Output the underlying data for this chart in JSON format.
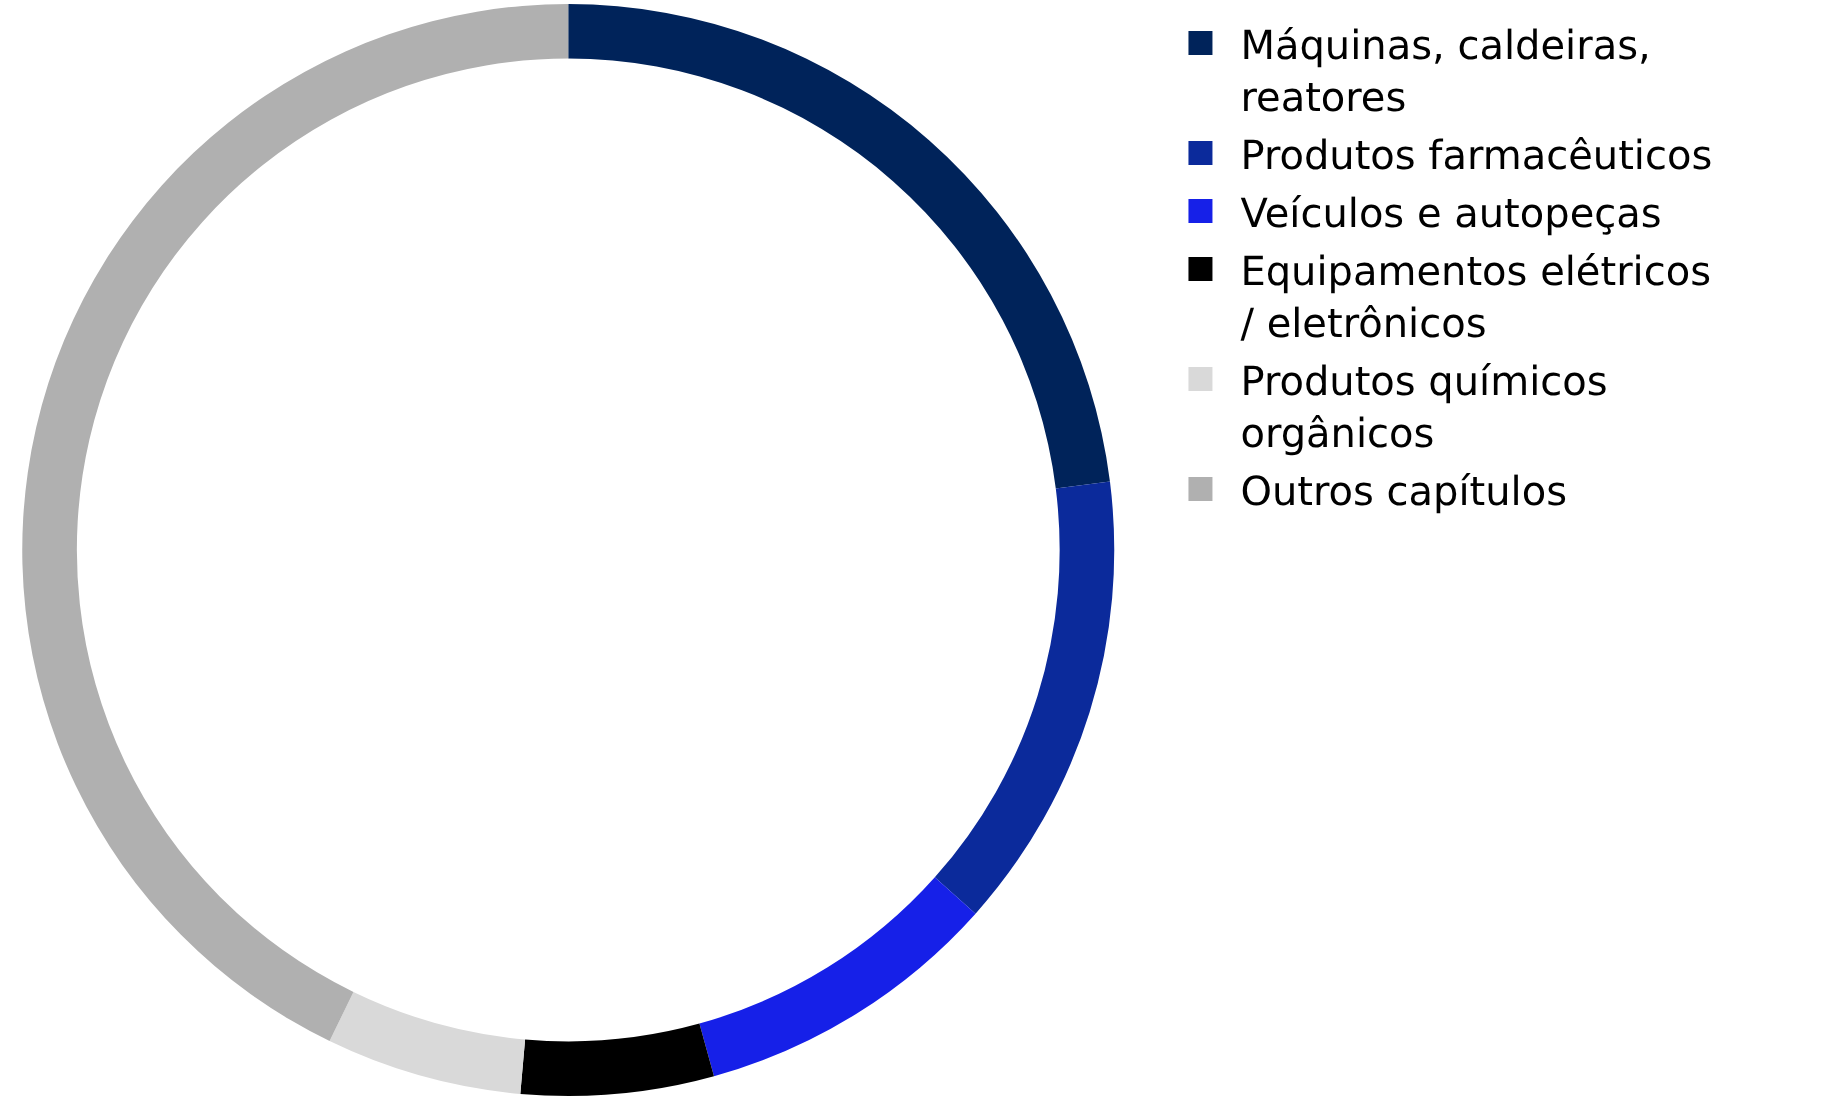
{
  "chart_data": {
    "type": "donut",
    "categories": [
      "Máquinas, caldeiras, reatores",
      "Produtos farmacêuticos",
      "Veículos e autopeças",
      "Equipamentos elétricos / eletrônicos",
      "Produtos químicos orgânicos",
      "Outros capítulos"
    ],
    "values": [
      23,
      13.6,
      9.1,
      5.7,
      5.8,
      42.8
    ],
    "colors": [
      "#00235a",
      "#0b2a9b",
      "#1620e8",
      "#000000",
      "#d9d9d9",
      "#b0b0b0"
    ],
    "legend": "right"
  }
}
